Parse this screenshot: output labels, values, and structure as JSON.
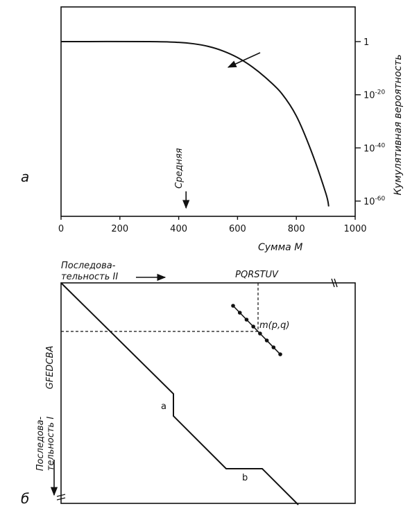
{
  "chart_data": [
    {
      "panel_label": "а",
      "type": "line",
      "xlabel": "Сумма  M",
      "ylabel": "Кумулятивная вероятность",
      "xlim": [
        0,
        1000
      ],
      "y_scale": "log",
      "x_ticks": [
        "0",
        "200",
        "400",
        "600",
        "800",
        "1000"
      ],
      "y_ticks": [
        {
          "base": "1",
          "exp": ""
        },
        {
          "base": "10",
          "exp": "-20"
        },
        {
          "base": "10",
          "exp": "-40"
        },
        {
          "base": "10",
          "exp": "-60"
        }
      ],
      "y_exponent_values": [
        0,
        -20,
        -40,
        -60
      ],
      "mean_label": "Средняя",
      "mean_x": 425,
      "series": [
        {
          "x": [
            0,
            300,
            400,
            450,
            500,
            550,
            600,
            650,
            700,
            750,
            800,
            850,
            900,
            910
          ],
          "y_log10": [
            0,
            0,
            -0.3,
            -0.8,
            -1.8,
            -3.5,
            -6,
            -9.5,
            -14,
            -19.5,
            -28,
            -41,
            -57,
            -62
          ]
        }
      ]
    },
    {
      "panel_label": "б",
      "type": "diagram",
      "seq2_label_line1": "Последова-",
      "seq2_label_line2": "тельность II",
      "seq1_label_line1": "Последова-",
      "seq1_label_line2": "тельность I",
      "top_letters": "PQRSTUV",
      "left_letters": "GFEDCBA",
      "point_label": "m(p,q)",
      "segment_label_a": "a",
      "segment_label_b": "b"
    }
  ]
}
